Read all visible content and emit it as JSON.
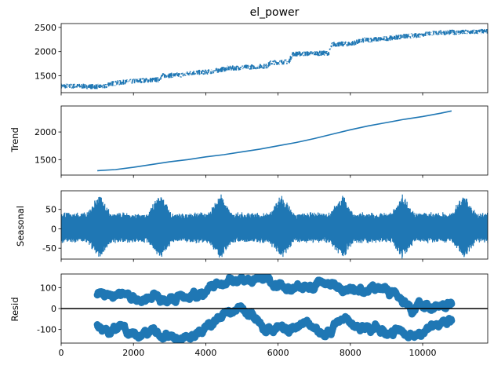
{
  "chart_data": [
    {
      "type": "line",
      "title": "el_power",
      "ylabel": "",
      "xlim": [
        0,
        11800
      ],
      "ylim": [
        1150,
        2580
      ],
      "yticks": [
        1500,
        2000,
        2500
      ],
      "color": "#1f77b4",
      "series": [
        {
          "x": [
            0,
            1000,
            1250,
            1300,
            1800,
            2200,
            2700,
            2800,
            3400,
            3600,
            4100,
            4600,
            5200,
            5700,
            5800,
            6300,
            6400,
            6900,
            7400,
            7500,
            8000,
            8400,
            8900,
            9400,
            9800,
            10200,
            10500,
            10800,
            11200,
            11800
          ],
          "values": [
            1290,
            1275,
            1280,
            1330,
            1370,
            1400,
            1420,
            1500,
            1520,
            1560,
            1580,
            1650,
            1680,
            1700,
            1770,
            1790,
            1950,
            1960,
            1970,
            2150,
            2160,
            2240,
            2260,
            2310,
            2330,
            2380,
            2390,
            2400,
            2400,
            2420
          ],
          "band": 55
        }
      ]
    },
    {
      "type": "line",
      "title": "",
      "ylabel": "Trend",
      "xlim": [
        0,
        11800
      ],
      "ylim": [
        1220,
        2470
      ],
      "yticks": [
        1500,
        2000
      ],
      "color": "#1f77b4",
      "series": [
        {
          "x": [
            1000,
            1500,
            2000,
            2500,
            3000,
            3500,
            4000,
            4500,
            5000,
            5500,
            6000,
            6500,
            7000,
            7500,
            8000,
            8500,
            9000,
            9500,
            10000,
            10500,
            10800
          ],
          "values": [
            1300,
            1320,
            1360,
            1410,
            1460,
            1500,
            1550,
            1590,
            1640,
            1690,
            1750,
            1810,
            1880,
            1960,
            2040,
            2110,
            2170,
            2230,
            2280,
            2340,
            2380
          ]
        }
      ]
    },
    {
      "type": "line",
      "title": "",
      "ylabel": "Seasonal",
      "xlim": [
        0,
        11800
      ],
      "ylim": [
        -78,
        98
      ],
      "yticks": [
        -50,
        0,
        50
      ],
      "color": "#1f77b4",
      "series": [
        {
          "period": 1680,
          "peaks": [
            1050,
            2730,
            4410,
            6090,
            7770,
            9450,
            11130
          ],
          "amplitude_high": 80,
          "amplitude_low": 35
        }
      ]
    },
    {
      "type": "scatter",
      "title": "",
      "ylabel": "Resid",
      "xlabel": "",
      "xlim": [
        0,
        11800
      ],
      "ylim": [
        -165,
        165
      ],
      "yticks": [
        -100,
        0,
        100
      ],
      "xticks": [
        0,
        2000,
        4000,
        6000,
        8000,
        10000
      ],
      "color": "#1f77b4",
      "zero_line": true,
      "series": [
        {
          "x_range": [
            1000,
            10800
          ],
          "spread": 150
        }
      ]
    }
  ]
}
